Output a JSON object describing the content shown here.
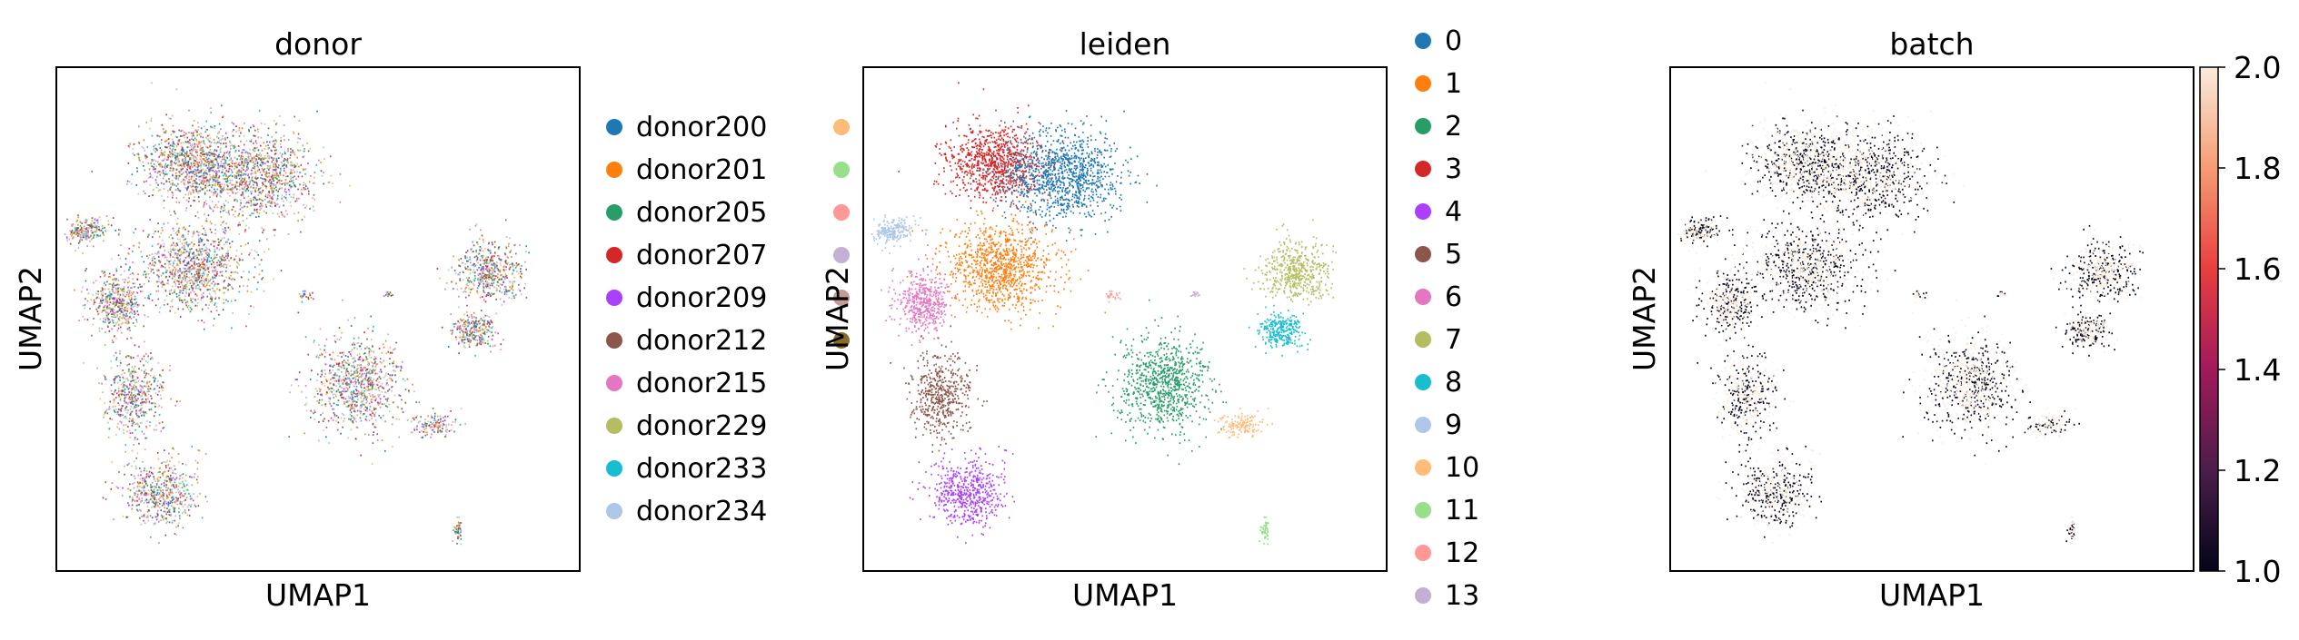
{
  "chart_data": [
    {
      "type": "scatter",
      "title": "donor",
      "xlabel": "UMAP1",
      "ylabel": "UMAP2",
      "legend_position": "right",
      "categories": [
        "donor200",
        "donor201",
        "donor205",
        "donor207",
        "donor209",
        "donor212",
        "donor215",
        "donor229",
        "donor233",
        "donor234",
        "",
        "",
        "",
        "",
        "",
        ""
      ],
      "colors": [
        "#1f77b4",
        "#ff7f0e",
        "#279e68",
        "#d62728",
        "#aa40fc",
        "#8c564b",
        "#e377c2",
        "#b5bd61",
        "#17becf",
        "#aec7e8",
        "#ffbb78",
        "#98df8a",
        "#ff9896",
        "#c5b0d5",
        "#c49c94",
        "#8b6a2e"
      ]
    },
    {
      "type": "scatter",
      "title": "leiden",
      "xlabel": "UMAP1",
      "ylabel": "UMAP2",
      "legend_position": "right",
      "categories": [
        "0",
        "1",
        "2",
        "3",
        "4",
        "5",
        "6",
        "7",
        "8",
        "9",
        "10",
        "11",
        "12",
        "13"
      ],
      "colors": [
        "#1f77b4",
        "#ff7f0e",
        "#279e68",
        "#d62728",
        "#aa40fc",
        "#8c564b",
        "#e377c2",
        "#b5bd61",
        "#17becf",
        "#aec7e8",
        "#ffbb78",
        "#98df8a",
        "#ff9896",
        "#c5b0d5"
      ]
    },
    {
      "type": "scatter",
      "title": "batch",
      "xlabel": "UMAP1",
      "ylabel": "UMAP2",
      "colorbar": {
        "min": 1.0,
        "max": 2.0,
        "ticks": [
          "1.0",
          "1.2",
          "1.4",
          "1.6",
          "1.8",
          "2.0"
        ],
        "colormap": [
          "#03051a",
          "#4c1d4b",
          "#a11a5b",
          "#e83f3f",
          "#f69c73",
          "#faebdd"
        ]
      }
    }
  ]
}
